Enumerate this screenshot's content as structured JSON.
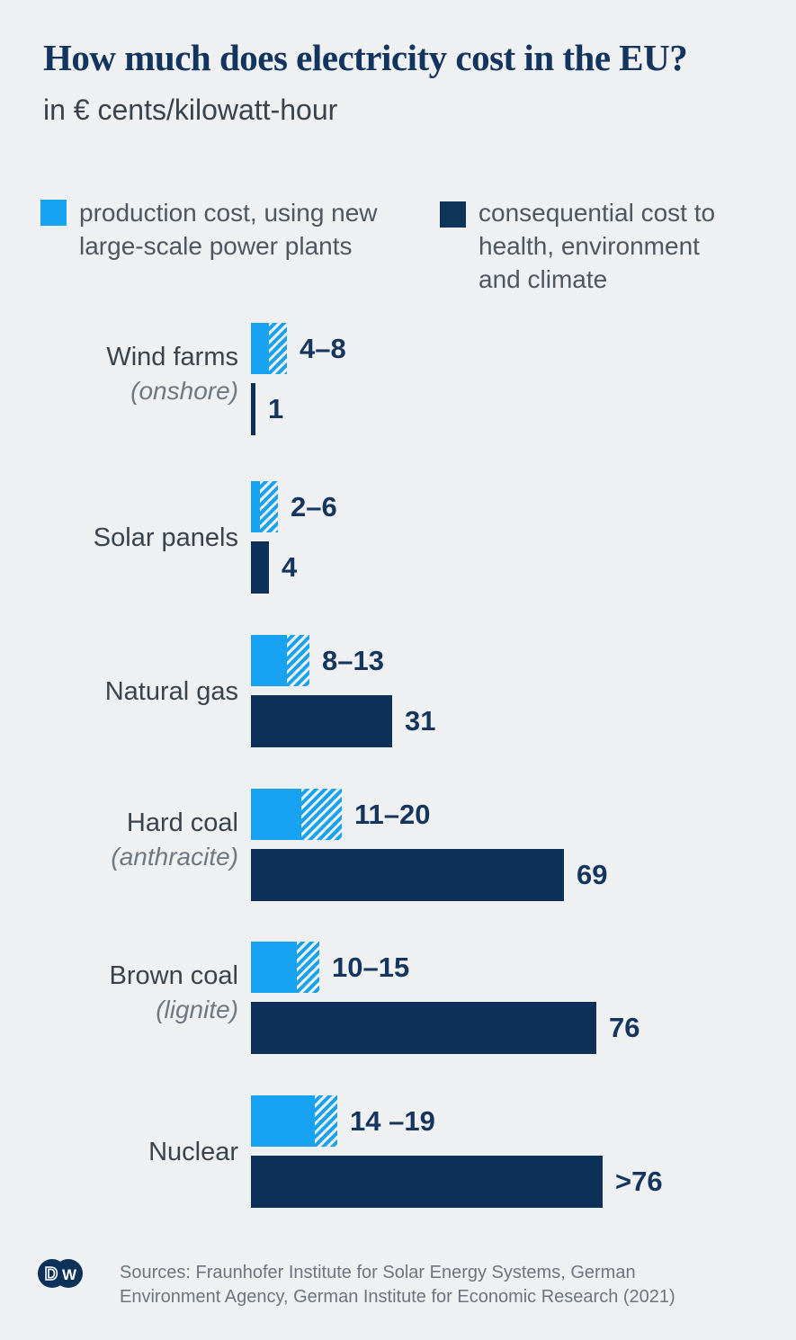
{
  "colors": {
    "background": "#eef0f2",
    "title_text": "#123560",
    "subtitle_text": "#39434d",
    "category_text": "#39434d",
    "category_sublabel_text": "#6e7881",
    "legend_text": "#4d5761",
    "value_text": "#14365e",
    "production_blue": "#18a2f2",
    "consequential_navy": "#0d3158",
    "sources_text": "#6c757f",
    "logo_navy": "#0d3158"
  },
  "header": {
    "title": "How much does electricity cost in the EU?",
    "subtitle": "in € cents/kilowatt-hour"
  },
  "legend": {
    "production": "production cost, using new\nlarge-scale power plants",
    "consequential": "consequential cost to\nhealth, environment\nand climate"
  },
  "footer": {
    "logo": "DW",
    "logo_letters": {
      "left": "D",
      "right": "W"
    },
    "sources": "Sources: Fraunhofer Institute for Solar Energy Systems, German\nEnvironment Agency, German Institute for Economic Research (2021)"
  },
  "chart_data": {
    "type": "bar",
    "orientation": "horizontal",
    "title": "How much does electricity cost in the EU?",
    "unit": "€ cents/kilowatt-hour",
    "legend_position": "top",
    "grid": false,
    "series": [
      {
        "name": "production cost, using new large-scale power plants",
        "color": "#18a2f2",
        "style": "solid with hatched range extension"
      },
      {
        "name": "consequential cost to health, environment and climate",
        "color": "#0d3158",
        "style": "solid"
      }
    ],
    "rows": [
      {
        "label": "Wind farms",
        "sublabel": "(onshore)",
        "production_min": 4,
        "production_max": 8,
        "production_display": "4–8",
        "consequential": 1,
        "consequential_display": "1",
        "consequential_bar_units": 1
      },
      {
        "label": "Solar panels",
        "sublabel": "",
        "production_min": 2,
        "production_max": 6,
        "production_display": "2–6",
        "consequential": 4,
        "consequential_display": "4",
        "consequential_bar_units": 4
      },
      {
        "label": "Natural gas",
        "sublabel": "",
        "production_min": 8,
        "production_max": 13,
        "production_display": "8–13",
        "consequential": 31,
        "consequential_display": "31",
        "consequential_bar_units": 31
      },
      {
        "label": "Hard coal",
        "sublabel": "(anthracite)",
        "production_min": 11,
        "production_max": 20,
        "production_display": "11–20",
        "consequential": 69,
        "consequential_display": "69",
        "consequential_bar_units": 69
      },
      {
        "label": "Brown coal",
        "sublabel": "(lignite)",
        "production_min": 10,
        "production_max": 15,
        "production_display": "10–15",
        "consequential": 76,
        "consequential_display": "76",
        "consequential_bar_units": 76
      },
      {
        "label": "Nuclear",
        "sublabel": "",
        "production_min": 14,
        "production_max": 19,
        "production_display": "14 –19",
        "consequential": 76,
        "consequential_display": ">76",
        "consequential_bar_units": 77.5
      }
    ]
  }
}
